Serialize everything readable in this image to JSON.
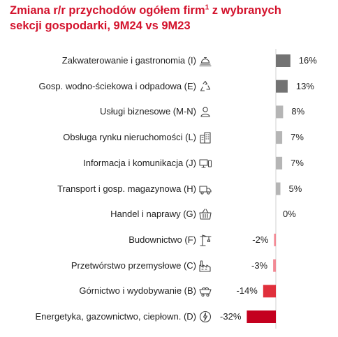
{
  "title": {
    "line1_text": "Zmiana r/r przychodów ogółem firm",
    "line1_sup": "1",
    "line1_tail": " z wybranych",
    "line2": "sekcji gospodarki, 9M24 vs 9M23"
  },
  "colors": {
    "title": "#d3122c",
    "bar_high": "#737373",
    "bar_mid": "#b5b5b5",
    "bar_neg_light": "#f28a95",
    "bar_neg_mid": "#e0303c",
    "bar_neg_strong": "#c4001e",
    "axis": "#d0d0d0"
  },
  "chart_data": {
    "type": "bar",
    "orientation": "horizontal",
    "categories": [
      "Zakwaterowanie i gastronomia (I)",
      "Gosp. wodno-ściekowa i odpadowa (E)",
      "Usługi biznesowe (M-N)",
      "Obsługa rynku nieruchomości (L)",
      "Informacja i komunikacja (J)",
      "Transport i gosp. magazynowa (H)",
      "Handel i naprawy (G)",
      "Budownictwo (F)",
      "Przetwórstwo przemysłowe (C)",
      "Górnictwo i wydobywanie (B)",
      "Energetyka, gazownictwo, ciepłown. (D)"
    ],
    "values": [
      16,
      13,
      8,
      7,
      7,
      5,
      0,
      -2,
      -3,
      -14,
      -32
    ],
    "value_labels": [
      "16%",
      "13%",
      "8%",
      "7%",
      "7%",
      "5%",
      "0%",
      "-2%",
      "-3%",
      "-14%",
      "-32%"
    ],
    "icons": [
      "hotel-bell-icon",
      "recycle-icon",
      "person-icon",
      "building-icon",
      "computer-phone-icon",
      "truck-icon",
      "basket-icon",
      "crane-icon",
      "factory-icon",
      "mine-cart-icon",
      "energy-icon"
    ],
    "bar_colors": [
      "#737373",
      "#737373",
      "#b5b5b5",
      "#b5b5b5",
      "#b5b5b5",
      "#b5b5b5",
      "#b5b5b5",
      "#f28a95",
      "#f28a95",
      "#e0303c",
      "#c4001e"
    ],
    "unit": "%",
    "xlim": [
      -32,
      16
    ],
    "grid": false,
    "legend": "none"
  }
}
